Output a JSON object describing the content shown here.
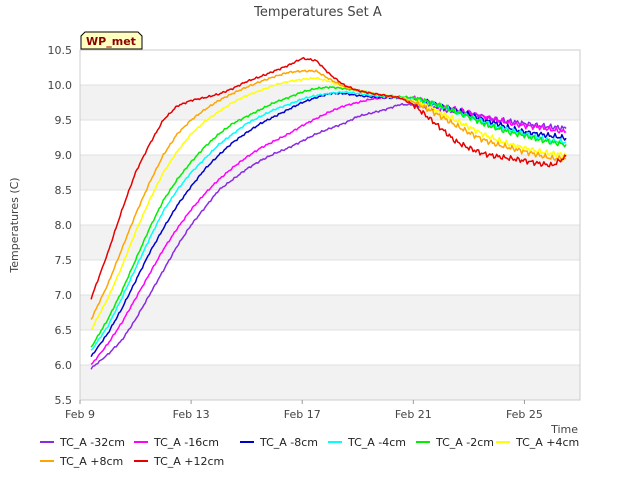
{
  "chart_data": {
    "type": "line",
    "title": "Temperatures Set A",
    "xlabel": "Time",
    "ylabel": "Temperatures (C)",
    "badge": "WP_met",
    "x_ticks": [
      "Feb 9",
      "Feb 13",
      "Feb 17",
      "Feb 21",
      "Feb 25"
    ],
    "x_tick_days": [
      9,
      13,
      17,
      21,
      25
    ],
    "xlim": [
      9,
      27
    ],
    "ylim": [
      5.5,
      10.5
    ],
    "y_ticks": [
      5.5,
      6.0,
      6.5,
      7.0,
      7.5,
      8.0,
      8.5,
      9.0,
      9.5,
      10.0,
      10.5
    ],
    "y_tick_labels": [
      "5.5",
      "6.0",
      "6.5",
      "7.0",
      "7.5",
      "8.0",
      "8.5",
      "9.0",
      "9.5",
      "10.0",
      "10.5"
    ],
    "background_bands": true,
    "x_days": [
      9.4,
      10.0,
      10.5,
      11.0,
      11.5,
      12.0,
      12.5,
      13.0,
      13.5,
      14.0,
      14.5,
      15.0,
      15.5,
      16.0,
      16.5,
      17.0,
      17.5,
      18.0,
      18.5,
      19.0,
      19.5,
      20.0,
      20.5,
      21.0,
      21.5,
      22.0,
      22.5,
      23.0,
      23.5,
      24.0,
      24.5,
      25.0,
      25.5,
      26.0,
      26.5
    ],
    "series": [
      {
        "name": "TC_A -32cm",
        "color": "#8a2be2",
        "values": [
          5.95,
          6.15,
          6.35,
          6.65,
          7.0,
          7.35,
          7.7,
          8.0,
          8.25,
          8.5,
          8.65,
          8.8,
          8.92,
          9.02,
          9.1,
          9.2,
          9.3,
          9.38,
          9.45,
          9.55,
          9.6,
          9.65,
          9.72,
          9.72,
          9.7,
          9.65,
          9.62,
          9.6,
          9.55,
          9.5,
          9.48,
          9.45,
          9.42,
          9.4,
          9.38
        ]
      },
      {
        "name": "TC_A -16cm",
        "color": "#ff00ff",
        "values": [
          6.0,
          6.3,
          6.6,
          6.95,
          7.3,
          7.65,
          7.95,
          8.22,
          8.45,
          8.65,
          8.82,
          8.97,
          9.1,
          9.2,
          9.3,
          9.42,
          9.52,
          9.62,
          9.7,
          9.75,
          9.8,
          9.82,
          9.82,
          9.8,
          9.75,
          9.7,
          9.65,
          9.6,
          9.55,
          9.5,
          9.45,
          9.42,
          9.4,
          9.36,
          9.33
        ]
      },
      {
        "name": "TC_A -8cm",
        "color": "#0000cd",
        "values": [
          6.12,
          6.45,
          6.8,
          7.2,
          7.6,
          7.95,
          8.28,
          8.55,
          8.8,
          9.0,
          9.18,
          9.32,
          9.45,
          9.55,
          9.65,
          9.75,
          9.82,
          9.88,
          9.88,
          9.85,
          9.83,
          9.82,
          9.82,
          9.8,
          9.76,
          9.7,
          9.64,
          9.58,
          9.5,
          9.45,
          9.38,
          9.33,
          9.3,
          9.27,
          9.24
        ]
      },
      {
        "name": "TC_A -4cm",
        "color": "#00ffff",
        "values": [
          6.2,
          6.55,
          6.95,
          7.38,
          7.8,
          8.2,
          8.5,
          8.75,
          8.95,
          9.15,
          9.3,
          9.45,
          9.55,
          9.65,
          9.72,
          9.8,
          9.85,
          9.88,
          9.9,
          9.88,
          9.85,
          9.83,
          9.82,
          9.8,
          9.75,
          9.7,
          9.62,
          9.55,
          9.48,
          9.4,
          9.35,
          9.3,
          9.25,
          9.2,
          9.18
        ]
      },
      {
        "name": "TC_A -2cm",
        "color": "#00ee00",
        "values": [
          6.25,
          6.65,
          7.05,
          7.5,
          7.95,
          8.35,
          8.65,
          8.9,
          9.12,
          9.3,
          9.45,
          9.55,
          9.65,
          9.75,
          9.82,
          9.9,
          9.95,
          9.97,
          9.95,
          9.92,
          9.88,
          9.85,
          9.83,
          9.82,
          9.77,
          9.7,
          9.62,
          9.55,
          9.45,
          9.38,
          9.32,
          9.28,
          9.22,
          9.18,
          9.15
        ]
      },
      {
        "name": "TC_A +4cm",
        "color": "#ffff00",
        "values": [
          6.5,
          6.95,
          7.4,
          7.9,
          8.35,
          8.75,
          9.05,
          9.3,
          9.48,
          9.62,
          9.75,
          9.85,
          9.92,
          10.0,
          10.05,
          10.08,
          10.1,
          10.05,
          9.98,
          9.92,
          9.88,
          9.85,
          9.82,
          9.78,
          9.7,
          9.6,
          9.5,
          9.4,
          9.3,
          9.22,
          9.15,
          9.1,
          9.05,
          9.02,
          9.0
        ]
      },
      {
        "name": "TC_A +8cm",
        "color": "#ffa500",
        "values": [
          6.65,
          7.15,
          7.65,
          8.15,
          8.6,
          9.0,
          9.3,
          9.5,
          9.65,
          9.78,
          9.88,
          9.97,
          10.05,
          10.12,
          10.18,
          10.2,
          10.2,
          10.08,
          9.98,
          9.92,
          9.88,
          9.85,
          9.82,
          9.76,
          9.66,
          9.55,
          9.43,
          9.32,
          9.22,
          9.15,
          9.1,
          9.05,
          9.0,
          8.95,
          8.95
        ]
      },
      {
        "name": "TC_A +12cm",
        "color": "#e60000",
        "values": [
          6.95,
          7.6,
          8.2,
          8.75,
          9.15,
          9.5,
          9.7,
          9.78,
          9.82,
          9.87,
          9.95,
          10.05,
          10.12,
          10.2,
          10.28,
          10.38,
          10.35,
          10.15,
          10.0,
          9.92,
          9.88,
          9.85,
          9.82,
          9.72,
          9.55,
          9.38,
          9.2,
          9.1,
          9.02,
          8.98,
          8.95,
          8.92,
          8.88,
          8.85,
          8.98
        ]
      }
    ]
  }
}
